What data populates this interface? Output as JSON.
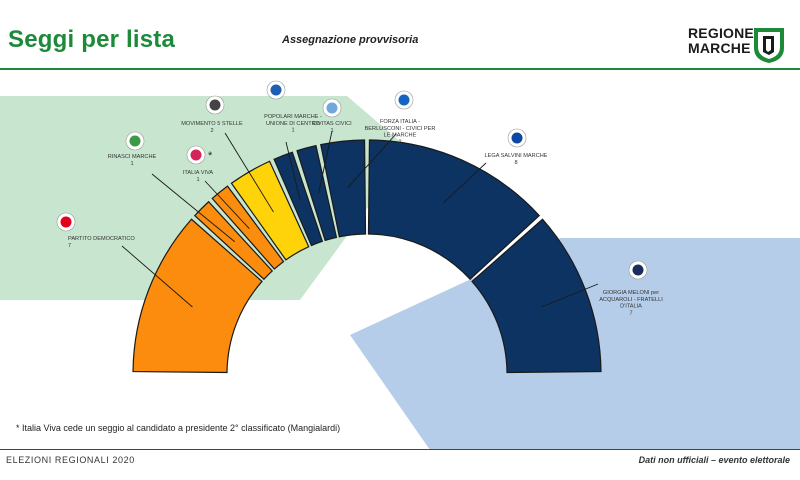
{
  "header": {
    "title": "Seggi per lista",
    "subtitle": "Assegnazione provvisoria",
    "brand_line1": "REGIONE",
    "brand_line2": "MARCHE"
  },
  "chart_data": {
    "type": "parliament-arc",
    "title": "Seggi per lista",
    "subtitle": "Assegnazione provvisoria",
    "total_seats": 30,
    "groups": [
      {
        "name": "centre-left",
        "color": "#c8e6cf"
      },
      {
        "name": "centre-right",
        "color": "#b6cdea"
      }
    ],
    "series": [
      {
        "name": "PARTITO DEMOCRATICO",
        "seats": 7,
        "color": "#fb8c0d",
        "group": "centre-left"
      },
      {
        "name": "RINASCI MARCHE",
        "seats": 1,
        "color": "#fb8c0d",
        "group": "centre-left"
      },
      {
        "name": "ITALIA VIVA",
        "seats": 1,
        "color": "#fb8c0d",
        "group": "centre-left",
        "note_marker": "*"
      },
      {
        "name": "MOVIMENTO 5 STELLE",
        "seats": 2,
        "color": "#ffd309",
        "group": "none"
      },
      {
        "name": "POPOLARI MARCHE - UNIONE DI CENTRO",
        "seats": 1,
        "color": "#0d3363",
        "group": "centre-right"
      },
      {
        "name": "CIVITAS CIVICI",
        "seats": 1,
        "color": "#0d3363",
        "group": "centre-right"
      },
      {
        "name": "FORZA ITALIA - BERLUSCONI - CIVICI PER LE MARCHE",
        "seats": 2,
        "color": "#0d3363",
        "group": "centre-right"
      },
      {
        "name": "LEGA SALVINI MARCHE",
        "seats": 8,
        "color": "#0d3363",
        "group": "centre-right"
      },
      {
        "name": "GIORGIA MELONI per ACQUAROLI - FRATELLI D'ITALIA",
        "seats": 7,
        "color": "#0d3363",
        "group": "centre-right"
      }
    ],
    "labels": [
      {
        "lines": [
          "PARTITO DEMOCRATICO",
          "7"
        ],
        "icon_colors": [
          "#ffffff",
          "#e2001a"
        ]
      },
      {
        "lines": [
          "RINASCI MARCHE",
          "1"
        ],
        "icon_colors": [
          "#ffffff",
          "#3a9a46"
        ]
      },
      {
        "lines": [
          "ITALIA VIVA",
          "1"
        ],
        "icon_colors": [
          "#ffffff",
          "#d5245a"
        ],
        "marker": "*"
      },
      {
        "lines": [
          "MOVIMENTO 5 STELLE",
          "2"
        ],
        "icon_colors": [
          "#ffffff",
          "#444444"
        ]
      },
      {
        "lines": [
          "POPOLARI MARCHE -",
          "UNIONE DI CENTRO",
          "1"
        ],
        "icon_colors": [
          "#ffffff",
          "#1f5fb3"
        ]
      },
      {
        "lines": [
          "CIVITAS CIVICI",
          "1"
        ],
        "icon_colors": [
          "#ffffff",
          "#6fa8dc"
        ]
      },
      {
        "lines": [
          "FORZA ITALIA -",
          "BERLUSCONI - CIVICI PER",
          "LE MARCHE",
          "2"
        ],
        "icon_colors": [
          "#ffffff",
          "#1565c0"
        ]
      },
      {
        "lines": [
          "LEGA SALVINI MARCHE",
          "8"
        ],
        "icon_colors": [
          "#ffffff",
          "#0d47a1"
        ]
      },
      {
        "lines": [
          "GIORGIA MELONI per",
          "ACQUAROLI - FRATELLI",
          "D'ITALIA",
          "7"
        ],
        "icon_colors": [
          "#ffffff",
          "#1a2e5c"
        ]
      }
    ]
  },
  "footnote": "* Italia Viva cede un seggio al candidato a presidente 2° classificato (Mangialardi)",
  "footer": {
    "left": "ELEZIONI REGIONALI 2020",
    "right": "Dati non ufficiali – evento elettorale"
  },
  "colors": {
    "brand_green": "#1d8a3a",
    "centre_left_area": "#c8e6cf",
    "centre_right_area": "#b6cdea",
    "slice_stroke": "#1a1a1a"
  }
}
